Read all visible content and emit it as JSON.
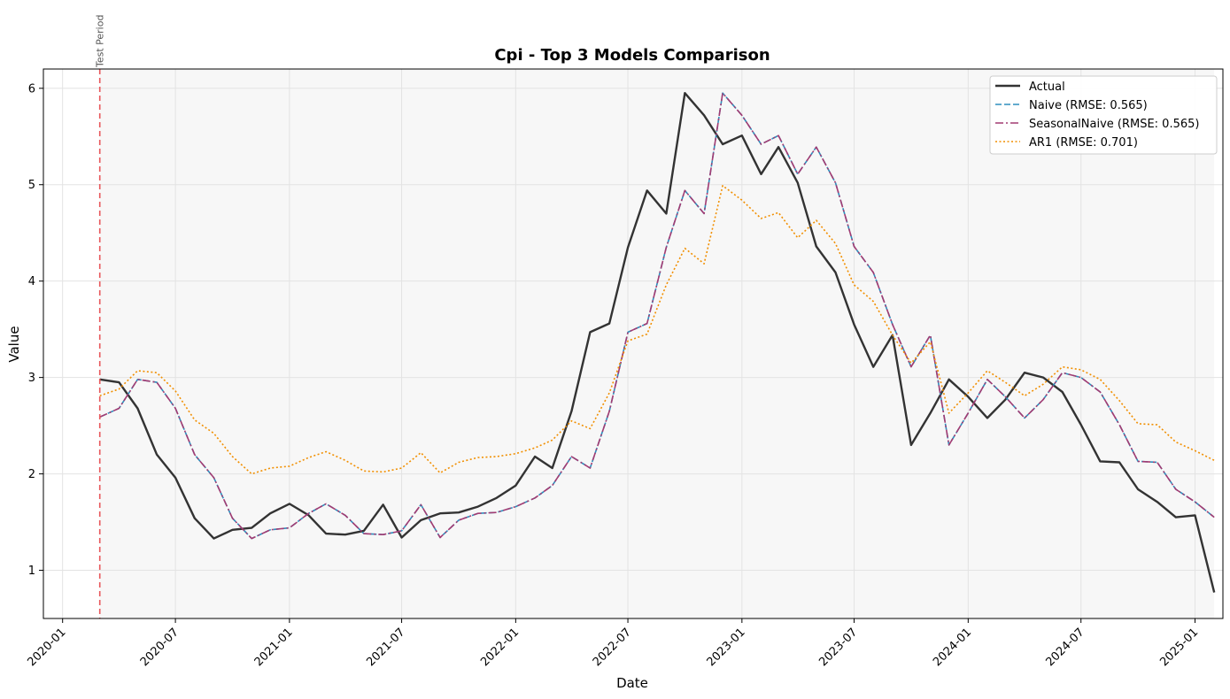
{
  "chart_data": {
    "type": "line",
    "title": "Cpi - Top 3 Models Comparison",
    "xlabel": "Date",
    "ylabel": "Value",
    "x_start": "2020-03",
    "x_step": "monthly",
    "xlim": [
      "2019-12-01",
      "2025-02-15"
    ],
    "ylim": [
      0.5,
      6.2
    ],
    "x_ticks": [
      "2020-01",
      "2020-07",
      "2021-01",
      "2021-07",
      "2022-01",
      "2022-07",
      "2023-01",
      "2023-07",
      "2024-01",
      "2024-07",
      "2025-01"
    ],
    "y_ticks": [
      1,
      2,
      3,
      4,
      5,
      6
    ],
    "grid": true,
    "legend_position": "top-right",
    "annotation": {
      "label": "Test Period",
      "x": "2020-03",
      "color": "#e8585b"
    },
    "series": [
      {
        "name": "Actual",
        "color": "#333333",
        "style": "solid",
        "values": [
          2.98,
          2.95,
          2.68,
          2.2,
          1.96,
          1.54,
          1.33,
          1.42,
          1.44,
          1.59,
          1.69,
          1.57,
          1.38,
          1.37,
          1.41,
          1.68,
          1.34,
          1.52,
          1.59,
          1.6,
          1.66,
          1.75,
          1.88,
          2.18,
          2.06,
          2.65,
          3.47,
          3.56,
          4.35,
          4.94,
          4.7,
          5.95,
          5.72,
          5.42,
          5.51,
          5.11,
          5.39,
          5.02,
          4.36,
          4.09,
          3.55,
          3.11,
          3.44,
          2.3,
          2.63,
          2.98,
          2.8,
          2.58,
          2.77,
          3.05,
          3.0,
          2.85,
          2.51,
          2.13,
          2.12,
          1.84,
          1.71,
          1.55,
          1.57,
          0.77
        ]
      },
      {
        "name": "Naive (RMSE: 0.565)",
        "color": "#2e8ebd",
        "style": "dashed",
        "values": [
          2.59,
          2.68,
          2.98,
          2.95,
          2.68,
          2.2,
          1.96,
          1.54,
          1.33,
          1.42,
          1.44,
          1.59,
          1.69,
          1.57,
          1.38,
          1.37,
          1.41,
          1.68,
          1.34,
          1.52,
          1.59,
          1.6,
          1.66,
          1.75,
          1.88,
          2.18,
          2.06,
          2.65,
          3.47,
          3.56,
          4.35,
          4.94,
          4.7,
          5.95,
          5.72,
          5.42,
          5.51,
          5.11,
          5.39,
          5.02,
          4.36,
          4.09,
          3.55,
          3.11,
          3.44,
          2.3,
          2.63,
          2.98,
          2.8,
          2.58,
          2.77,
          3.05,
          3.0,
          2.85,
          2.51,
          2.13,
          2.12,
          1.84,
          1.71,
          1.55
        ]
      },
      {
        "name": "SeasonalNaive (RMSE: 0.565)",
        "color": "#a23b72",
        "style": "dashdot",
        "values": [
          2.59,
          2.68,
          2.98,
          2.95,
          2.68,
          2.2,
          1.96,
          1.54,
          1.33,
          1.42,
          1.44,
          1.59,
          1.69,
          1.57,
          1.38,
          1.37,
          1.41,
          1.68,
          1.34,
          1.52,
          1.59,
          1.6,
          1.66,
          1.75,
          1.88,
          2.18,
          2.06,
          2.65,
          3.47,
          3.56,
          4.35,
          4.94,
          4.7,
          5.95,
          5.72,
          5.42,
          5.51,
          5.11,
          5.39,
          5.02,
          4.36,
          4.09,
          3.55,
          3.11,
          3.44,
          2.3,
          2.63,
          2.98,
          2.8,
          2.58,
          2.77,
          3.05,
          3.0,
          2.85,
          2.51,
          2.13,
          2.12,
          1.84,
          1.71,
          1.55
        ]
      },
      {
        "name": "AR1 (RMSE: 0.701)",
        "color": "#f18f01",
        "style": "dotted",
        "values": [
          2.81,
          2.88,
          3.07,
          3.05,
          2.86,
          2.56,
          2.42,
          2.18,
          2.0,
          2.06,
          2.08,
          2.17,
          2.23,
          2.14,
          2.03,
          2.02,
          2.06,
          2.22,
          2.01,
          2.12,
          2.17,
          2.18,
          2.21,
          2.27,
          2.35,
          2.55,
          2.47,
          2.84,
          3.38,
          3.45,
          3.96,
          4.34,
          4.18,
          4.99,
          4.84,
          4.65,
          4.71,
          4.45,
          4.63,
          4.39,
          3.96,
          3.79,
          3.44,
          3.15,
          3.37,
          2.63,
          2.84,
          3.07,
          2.95,
          2.81,
          2.93,
          3.11,
          3.08,
          2.98,
          2.76,
          2.52,
          2.51,
          2.33,
          2.24,
          2.14
        ]
      }
    ]
  }
}
